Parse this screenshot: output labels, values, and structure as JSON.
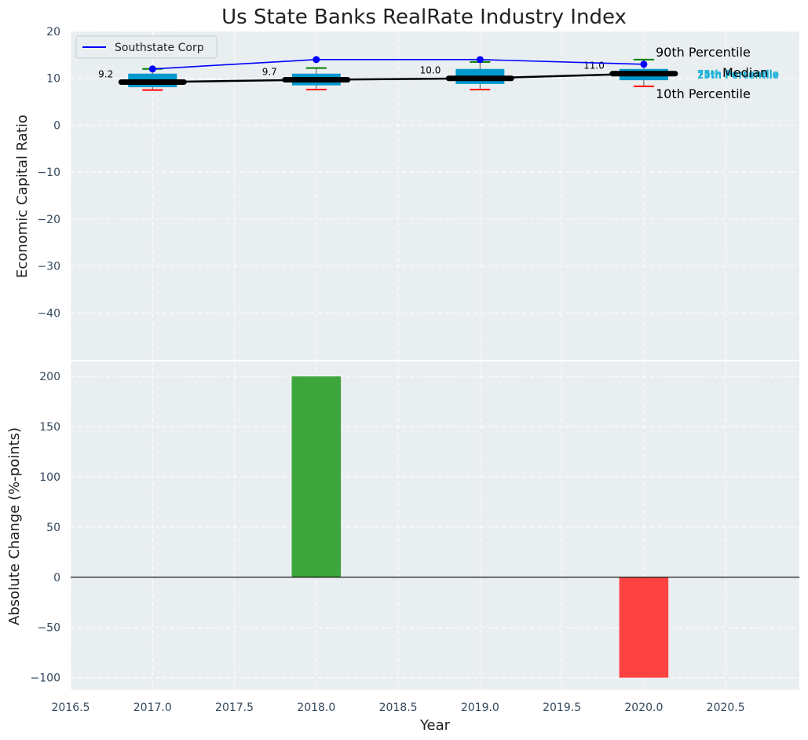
{
  "chart_data": [
    {
      "type": "box",
      "title": "Us State Banks RealRate Industry Index",
      "ylabel": "Economic Capital Ratio",
      "ylim": [
        -50,
        20
      ],
      "yticks": [
        20,
        10,
        0,
        -10,
        -20,
        -30,
        -40
      ],
      "x": [
        2017,
        2018,
        2019,
        2020
      ],
      "p10": [
        7.5,
        7.6,
        7.6,
        8.3
      ],
      "p25": [
        8.1,
        8.5,
        8.8,
        9.6
      ],
      "median": [
        9.2,
        9.7,
        10.0,
        11.0
      ],
      "p75": [
        11.0,
        11.0,
        12.0,
        12.0
      ],
      "p90": [
        12.0,
        12.2,
        13.5,
        14.0
      ],
      "median_labels": [
        "9.2",
        "9.7",
        "10.0",
        "11.0"
      ],
      "series": [
        {
          "name": "Southstate Corp",
          "color": "#0000ff",
          "values": [
            12.0,
            14.0,
            14.0,
            13.0
          ]
        }
      ],
      "annotations": {
        "p90": "90th Percentile",
        "p75": "75th Percentile",
        "median": "Median",
        "p25": "25th Percentile",
        "p10": "10th Percentile"
      },
      "colors": {
        "box": "#0099cc",
        "median": "#000000",
        "p90": "#008000",
        "p10": "#ff0000",
        "pct_text": "#1ab0d8"
      }
    },
    {
      "type": "bar",
      "ylabel": "Absolute Change (%-points)",
      "xlabel": "Year",
      "ylim": [
        -112,
        215
      ],
      "yticks": [
        200,
        150,
        100,
        50,
        0,
        -50,
        -100
      ],
      "xlim": [
        2016.5,
        2020.95
      ],
      "xticks": [
        "2016.5",
        "2017.0",
        "2017.5",
        "2018.0",
        "2018.5",
        "2019.0",
        "2019.5",
        "2020.0",
        "2020.5"
      ],
      "x": [
        2017,
        2018,
        2019,
        2020
      ],
      "values": [
        0,
        200,
        0,
        -100
      ],
      "colors": {
        "positive": "#2ca02c",
        "negative": "#ff3333"
      }
    }
  ]
}
